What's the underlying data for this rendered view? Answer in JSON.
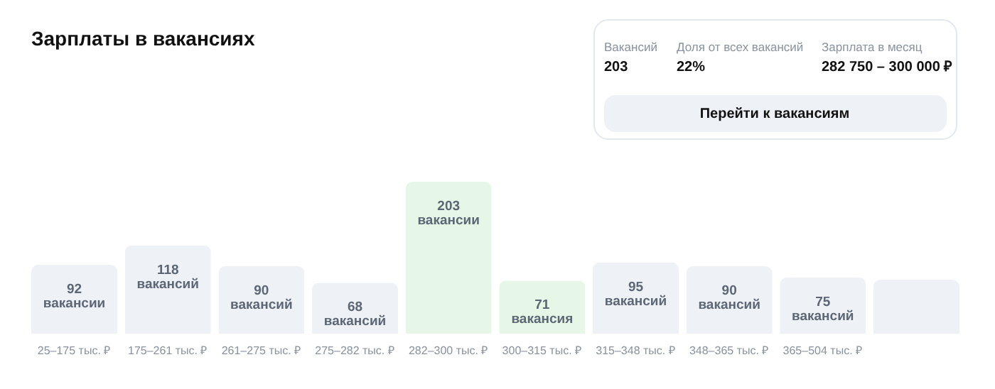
{
  "chart_data": {
    "type": "bar",
    "title": "Зарплаты в вакансиях",
    "categories": [
      "25–175 тыс. ₽",
      "175–261 тыс. ₽",
      "261–275 тыс. ₽",
      "275–282 тыс. ₽",
      "282–300 тыс. ₽",
      "300–315 тыс. ₽",
      "315–348 тыс. ₽",
      "348–365 тыс. ₽",
      "365–504 тыс. ₽",
      null
    ],
    "values": [
      92,
      118,
      90,
      68,
      203,
      71,
      95,
      90,
      75,
      72
    ],
    "value_labels": [
      "92\nвакансии",
      "118\nвакансий",
      "90\nвакансий",
      "68\nвакансий",
      "203\nвакансии",
      "71\nвакансия",
      "95\nвакансий",
      "90\nвакансий",
      "75\nвакансий",
      null
    ],
    "colors": [
      "#eef2f7",
      "#eef2f7",
      "#eef2f7",
      "#eef2f7",
      "#e6f7e8",
      "#e6f7e8",
      "#eef2f7",
      "#eef2f7",
      "#eef2f7",
      "#eef2f7"
    ],
    "tick_labels": "x",
    "grid": false,
    "annotations": [
      "Вакансий",
      "203",
      "Доля от всех вакансий",
      "22%",
      "Зарплата в месяц",
      "282 750 – 300 000 ₽",
      "Перейти к вакансиям"
    ]
  }
}
